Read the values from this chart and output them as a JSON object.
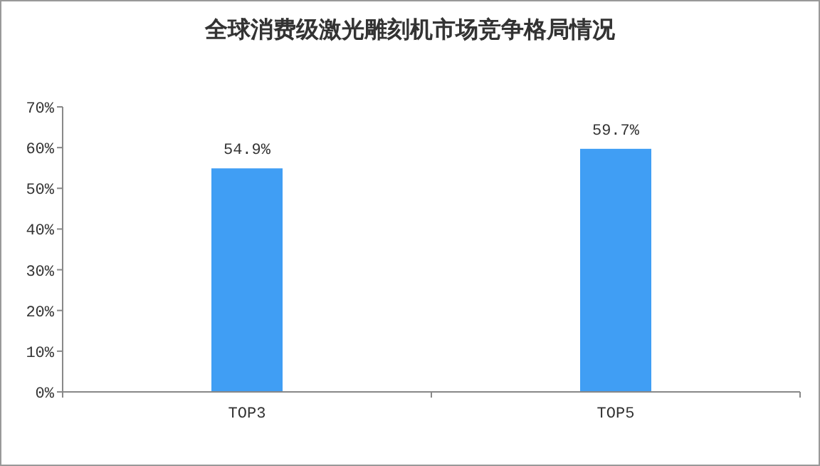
{
  "chart_data": {
    "type": "bar",
    "title": "全球消费级激光雕刻机市场竞争格局情况",
    "categories": [
      "TOP3",
      "TOP5"
    ],
    "values": [
      54.9,
      59.7
    ],
    "value_labels": [
      "54.9%",
      "59.7%"
    ],
    "color": "#409ef4",
    "ylim": [
      0,
      70
    ],
    "yticks": [
      {
        "value": 0,
        "label": "0%"
      },
      {
        "value": 10,
        "label": "10%"
      },
      {
        "value": 20,
        "label": "20%"
      },
      {
        "value": 30,
        "label": "30%"
      },
      {
        "value": 40,
        "label": "40%"
      },
      {
        "value": 50,
        "label": "50%"
      },
      {
        "value": 60,
        "label": "60%"
      },
      {
        "value": 70,
        "label": "70%"
      }
    ]
  }
}
